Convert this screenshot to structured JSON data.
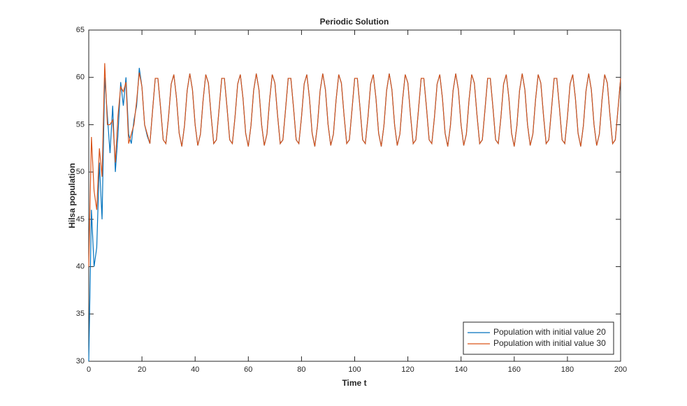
{
  "chart_data": {
    "type": "line",
    "title": "Periodic Solution",
    "x_label": "Time t",
    "y_label": "Hilsa population",
    "x": [
      0,
      1,
      2,
      3,
      4,
      5,
      6,
      7,
      8,
      9,
      10,
      11,
      12,
      13,
      14,
      15,
      16,
      17,
      18,
      19,
      20,
      21,
      22,
      23,
      24,
      25,
      26,
      27,
      28,
      29,
      30,
      31,
      32,
      33,
      34,
      35,
      36,
      37,
      38,
      39,
      40,
      41,
      42,
      43,
      44,
      45,
      46,
      47,
      48,
      49,
      50,
      51,
      52,
      53,
      54,
      55,
      56,
      57,
      58,
      59,
      60,
      61,
      62,
      63,
      64,
      65,
      66,
      67,
      68,
      69,
      70,
      71,
      72,
      73,
      74,
      75,
      76,
      77,
      78,
      79,
      80,
      81,
      82,
      83,
      84,
      85,
      86,
      87,
      88,
      89,
      90,
      91,
      92,
      93,
      94,
      95,
      96,
      97,
      98,
      99,
      100,
      101,
      102,
      103,
      104,
      105,
      106,
      107,
      108,
      109,
      110,
      111,
      112,
      113,
      114,
      115,
      116,
      117,
      118,
      119,
      120,
      121,
      122,
      123,
      124,
      125,
      126,
      127,
      128,
      129,
      130,
      131,
      132,
      133,
      134,
      135,
      136,
      137,
      138,
      139,
      140,
      141,
      142,
      143,
      144,
      145,
      146,
      147,
      148,
      149,
      150,
      151,
      152,
      153,
      154,
      155,
      156,
      157,
      158,
      159,
      160,
      161,
      162,
      163,
      164,
      165,
      166,
      167,
      168,
      169,
      170,
      171,
      172,
      173,
      174,
      175,
      176,
      177,
      178,
      179,
      180,
      181,
      182,
      183,
      184,
      185,
      186,
      187,
      188,
      189,
      190,
      191,
      192,
      193,
      194,
      195,
      196,
      197,
      198,
      199,
      200
    ],
    "series": [
      {
        "name": "Population with initial value 20",
        "color": "#0072bd",
        "values": [
          30,
          46,
          40,
          42,
          51,
          45,
          60,
          56,
          52,
          57,
          50,
          54,
          59.5,
          57,
          60,
          54,
          53,
          55.5,
          57,
          61,
          59,
          55,
          53.8,
          53,
          56.5,
          59.9,
          59.9,
          56.8,
          53.4,
          53.0,
          55.8,
          59.3,
          60.3,
          57.8,
          54.1,
          52.7,
          54.9,
          58.6,
          60.4,
          58.7,
          55.0,
          52.8,
          54.0,
          57.6,
          60.3,
          59.4,
          56.0,
          53.0,
          53.4,
          56.6,
          59.9,
          59.9,
          56.8,
          53.4,
          53.0,
          55.8,
          59.3,
          60.3,
          57.8,
          54.1,
          52.7,
          54.9,
          58.6,
          60.4,
          58.7,
          55.0,
          52.8,
          54.0,
          57.6,
          60.3,
          59.4,
          56.0,
          53.0,
          53.4,
          56.6,
          59.9,
          59.9,
          56.8,
          53.4,
          53.0,
          55.8,
          59.3,
          60.3,
          57.8,
          54.1,
          52.7,
          54.9,
          58.6,
          60.4,
          58.7,
          55.0,
          52.8,
          54.0,
          57.6,
          60.3,
          59.4,
          56.0,
          53.0,
          53.4,
          56.6,
          59.9,
          59.9,
          56.8,
          53.4,
          53.0,
          55.8,
          59.3,
          60.3,
          57.8,
          54.1,
          52.7,
          54.9,
          58.6,
          60.4,
          58.7,
          55.0,
          52.8,
          54.0,
          57.6,
          60.3,
          59.4,
          56.0,
          53.0,
          53.4,
          56.6,
          59.9,
          59.9,
          56.8,
          53.4,
          53.0,
          55.8,
          59.3,
          60.3,
          57.8,
          54.1,
          52.7,
          54.9,
          58.6,
          60.4,
          58.7,
          55.0,
          52.8,
          54.0,
          57.6,
          60.3,
          59.4,
          56.0,
          53.0,
          53.4,
          56.6,
          59.9,
          59.9,
          56.8,
          53.4,
          53.0,
          55.8,
          59.3,
          60.3,
          57.8,
          54.1,
          52.7,
          54.9,
          58.6,
          60.4,
          58.7,
          55.0,
          52.8,
          54.0,
          57.6,
          60.3,
          59.4,
          56.0,
          53.0,
          53.4,
          56.6,
          59.9,
          59.9,
          56.8,
          53.4,
          53.0,
          55.8,
          59.3,
          60.3,
          57.8,
          54.1,
          52.7,
          54.9,
          58.6,
          60.4,
          58.7,
          55.0,
          52.8,
          54.0,
          57.6,
          60.3,
          59.4,
          56.0,
          53.0,
          53.4,
          56.6,
          59.9
        ]
      },
      {
        "name": "Population with initial value 30",
        "color": "#d95319",
        "values": [
          40,
          53.7,
          48,
          46,
          52.5,
          49.5,
          61.5,
          55,
          55,
          55.5,
          51,
          56,
          59,
          58.5,
          59.5,
          53,
          54,
          55,
          57.5,
          60.5,
          59,
          55,
          54,
          53,
          56.5,
          59.9,
          59.9,
          56.8,
          53.4,
          53.0,
          55.8,
          59.3,
          60.3,
          57.8,
          54.1,
          52.7,
          54.9,
          58.6,
          60.4,
          58.7,
          55.0,
          52.8,
          54.0,
          57.6,
          60.3,
          59.4,
          56.0,
          53.0,
          53.4,
          56.6,
          59.9,
          59.9,
          56.8,
          53.4,
          53.0,
          55.8,
          59.3,
          60.3,
          57.8,
          54.1,
          52.7,
          54.9,
          58.6,
          60.4,
          58.7,
          55.0,
          52.8,
          54.0,
          57.6,
          60.3,
          59.4,
          56.0,
          53.0,
          53.4,
          56.6,
          59.9,
          59.9,
          56.8,
          53.4,
          53.0,
          55.8,
          59.3,
          60.3,
          57.8,
          54.1,
          52.7,
          54.9,
          58.6,
          60.4,
          58.7,
          55.0,
          52.8,
          54.0,
          57.6,
          60.3,
          59.4,
          56.0,
          53.0,
          53.4,
          56.6,
          59.9,
          59.9,
          56.8,
          53.4,
          53.0,
          55.8,
          59.3,
          60.3,
          57.8,
          54.1,
          52.7,
          54.9,
          58.6,
          60.4,
          58.7,
          55.0,
          52.8,
          54.0,
          57.6,
          60.3,
          59.4,
          56.0,
          53.0,
          53.4,
          56.6,
          59.9,
          59.9,
          56.8,
          53.4,
          53.0,
          55.8,
          59.3,
          60.3,
          57.8,
          54.1,
          52.7,
          54.9,
          58.6,
          60.4,
          58.7,
          55.0,
          52.8,
          54.0,
          57.6,
          60.3,
          59.4,
          56.0,
          53.0,
          53.4,
          56.6,
          59.9,
          59.9,
          56.8,
          53.4,
          53.0,
          55.8,
          59.3,
          60.3,
          57.8,
          54.1,
          52.7,
          54.9,
          58.6,
          60.4,
          58.7,
          55.0,
          52.8,
          54.0,
          57.6,
          60.3,
          59.4,
          56.0,
          53.0,
          53.4,
          56.6,
          59.9,
          59.9,
          56.8,
          53.4,
          53.0,
          55.8,
          59.3,
          60.3,
          57.8,
          54.1,
          52.7,
          54.9,
          58.6,
          60.4,
          58.7,
          55.0,
          52.8,
          54.0,
          57.6,
          60.3,
          59.4,
          56.0,
          53.0,
          53.4,
          56.6,
          59.9
        ]
      }
    ],
    "xlim": [
      0,
      200
    ],
    "xticks": [
      0,
      20,
      40,
      60,
      80,
      100,
      120,
      140,
      160,
      180,
      200
    ],
    "ylim": [
      30,
      65
    ],
    "yticks": [
      30,
      35,
      40,
      45,
      50,
      55,
      60,
      65
    ],
    "grid": false,
    "legend": "lower right"
  }
}
